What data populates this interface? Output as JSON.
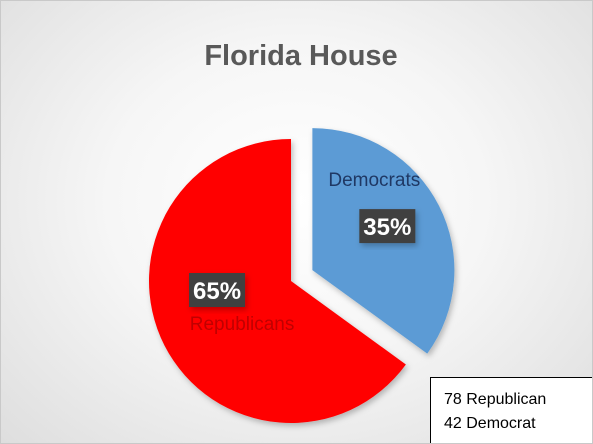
{
  "chart_data": {
    "type": "pie",
    "title": "Florida House",
    "categories": [
      "Democrats",
      "Republicans"
    ],
    "values": [
      35,
      65
    ],
    "value_labels": [
      "35%",
      "65%"
    ],
    "colors": [
      "#5b9bd5",
      "#ff0000"
    ],
    "label_colors": [
      "#1f3864",
      "#c00000"
    ],
    "exploded": "Democrats",
    "legend": "none"
  },
  "note": {
    "line1": "78 Republican",
    "line2": "42 Democrat"
  }
}
